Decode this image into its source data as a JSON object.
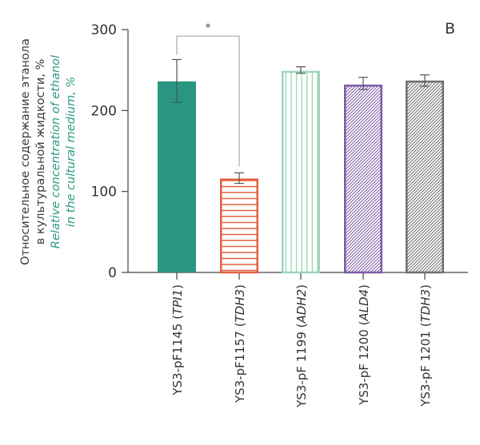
{
  "chart_data": {
    "type": "bar",
    "panel_label": "B",
    "ylabel_ru_line1": "Относительное содержание этанола",
    "ylabel_ru_line2": "в культуральной жидкости, %",
    "ylabel_en_line1": "Relative concentration of ethanol",
    "ylabel_en_line2": "in the cultural medium, %",
    "ylim": [
      0,
      300
    ],
    "yticks": [
      0,
      100,
      200,
      300
    ],
    "grid": false,
    "categories": [
      {
        "strain": "YS3-pF1145",
        "gene": "TPI1",
        "open": " (",
        "close": ")"
      },
      {
        "strain": "YS3-pF1157",
        "gene": "TDH3",
        "open": " (",
        "close": ")"
      },
      {
        "strain": "YS3-pF 1199",
        "gene": "ADH2",
        "open": " (",
        "close": ")"
      },
      {
        "strain": "YS3-pF 1200",
        "gene": "ALD4",
        "open": " (",
        "close": ")"
      },
      {
        "strain": "YS3-pF 1201",
        "gene": "TDH3",
        "open": " (",
        "close": ")"
      }
    ],
    "values": [
      236,
      116,
      249,
      232,
      237
    ],
    "error_low": [
      210,
      110,
      246,
      226,
      230
    ],
    "error_high": [
      263,
      123,
      254,
      241,
      244
    ],
    "styles": [
      {
        "pattern": "solid",
        "color": "#2a9682"
      },
      {
        "pattern": "horizontal",
        "color": "#e2603f"
      },
      {
        "pattern": "vertical",
        "color": "#9ed6b8"
      },
      {
        "pattern": "diagonal",
        "color": "#7b5aa6"
      },
      {
        "pattern": "diagonal",
        "color": "#6e6e6e"
      }
    ],
    "significance": {
      "from": 0,
      "to": 1,
      "label": "*",
      "level": 295
    }
  }
}
